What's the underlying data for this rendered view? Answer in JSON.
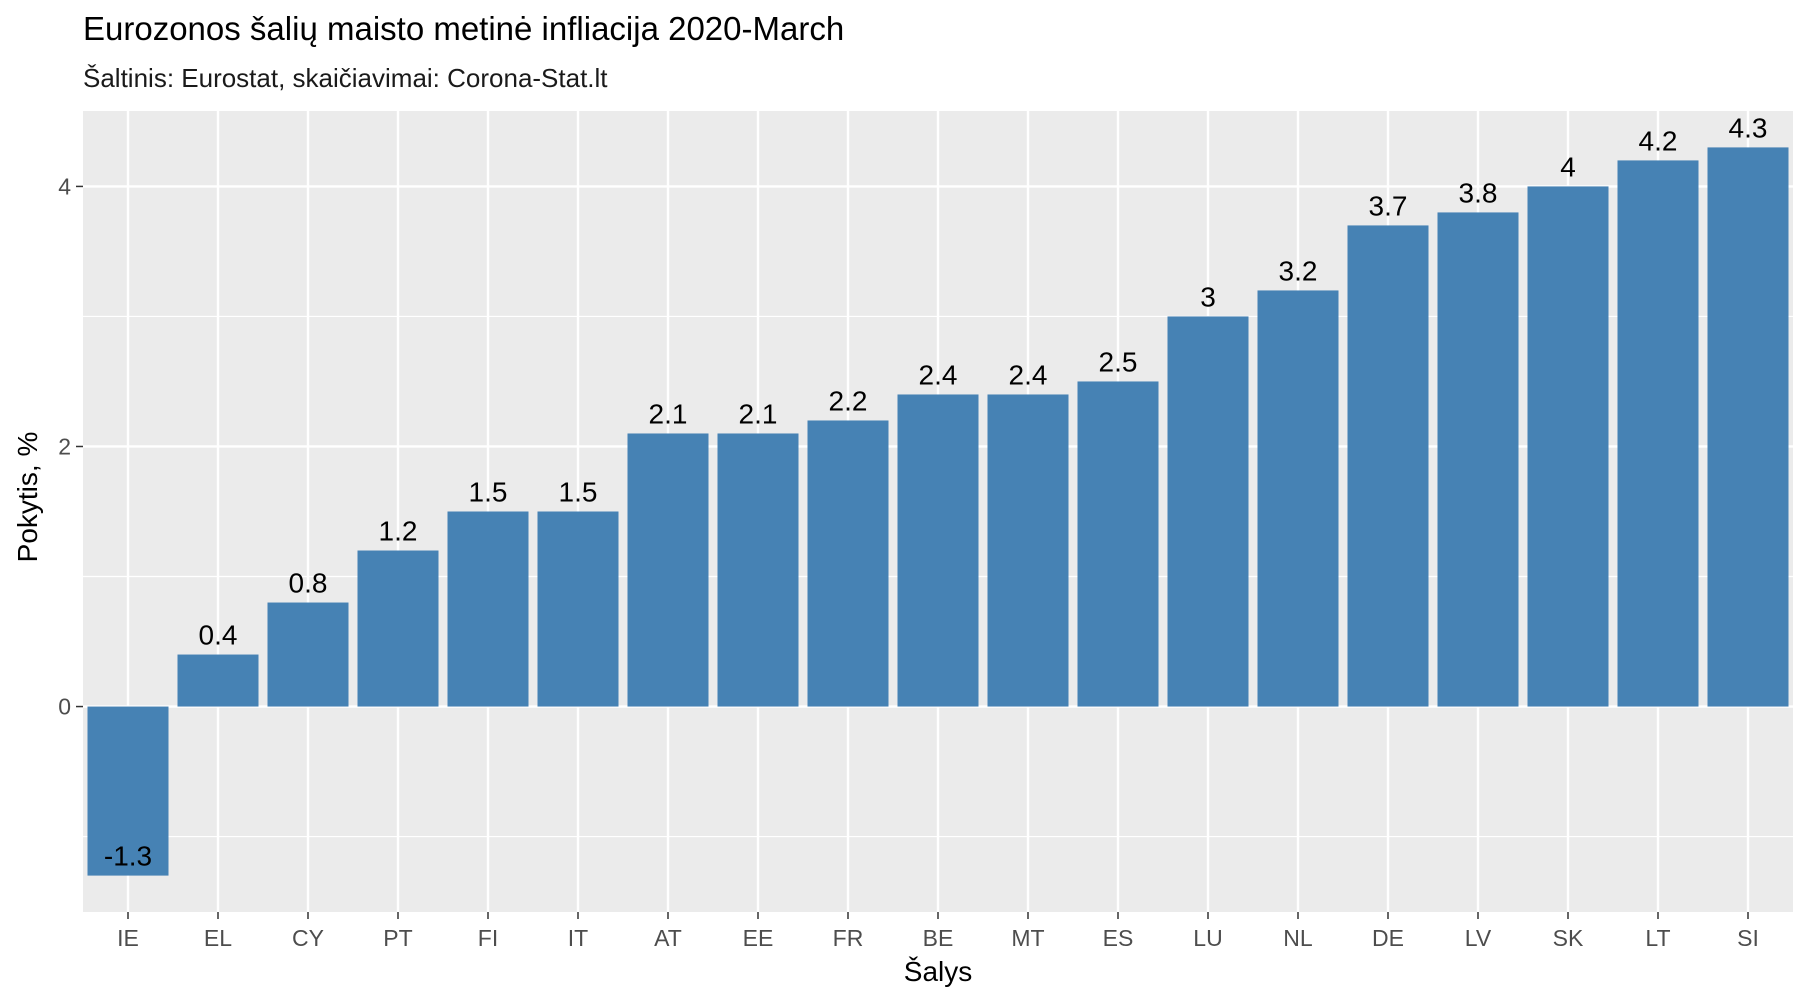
{
  "chart_data": {
    "type": "bar",
    "title": "Eurozonos šalių maisto metinė infliacija 2020-March",
    "subtitle": "Šaltinis: Eurostat, skaičiavimai: Corona-Stat.lt",
    "xlabel": "Šalys",
    "ylabel": "Pokytis, %",
    "categories": [
      "IE",
      "EL",
      "CY",
      "PT",
      "FI",
      "IT",
      "AT",
      "EE",
      "FR",
      "BE",
      "MT",
      "ES",
      "LU",
      "NL",
      "DE",
      "LV",
      "SK",
      "LT",
      "SI"
    ],
    "values": [
      -1.3,
      0.4,
      0.8,
      1.2,
      1.5,
      1.5,
      2.1,
      2.1,
      2.2,
      2.4,
      2.4,
      2.5,
      3,
      3.2,
      3.7,
      3.8,
      4,
      4.2,
      4.3
    ],
    "labels": [
      "-1.3",
      "0.4",
      "0.8",
      "1.2",
      "1.5",
      "1.5",
      "2.1",
      "2.1",
      "2.2",
      "2.4",
      "2.4",
      "2.5",
      "3",
      "3.2",
      "3.7",
      "3.8",
      "4",
      "4.2",
      "4.3"
    ],
    "yticks": [
      0,
      2,
      4
    ],
    "ytick_labels": [
      "0",
      "2",
      "4"
    ],
    "ylim": [
      -1.58,
      4.58
    ],
    "grid": true,
    "colors": {
      "bar": "#4682b4",
      "panel": "#ebebeb",
      "grid": "#ffffff"
    }
  }
}
